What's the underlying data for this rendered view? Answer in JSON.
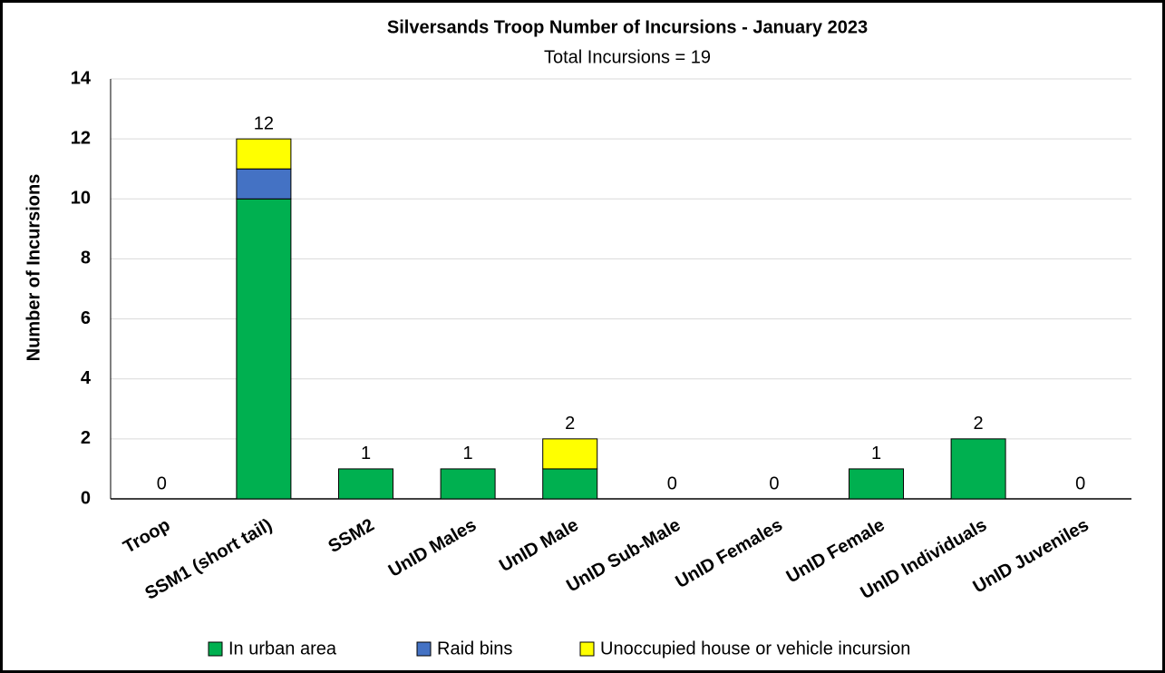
{
  "chart_data": {
    "type": "stacked_bar",
    "title": "Silversands Troop Number of Incursions - January 2023",
    "subtitle": "Total Incursions =  19",
    "y_label": "Number of Incursions",
    "categories": [
      "Troop",
      "SSM1 (short tail)",
      "SSM2",
      "UnID Males",
      "UnID Male",
      "UnID Sub-Male",
      "UnID Females",
      "UnID Female",
      "UnID Individuals",
      "UnID Juveniles"
    ],
    "series": [
      {
        "name": "In urban area",
        "color": "#00b050",
        "values": [
          0,
          10,
          1,
          1,
          1,
          0,
          0,
          1,
          2,
          0
        ]
      },
      {
        "name": "Raid bins",
        "color": "#4472c4",
        "values": [
          0,
          1,
          0,
          0,
          0,
          0,
          0,
          0,
          0,
          0
        ]
      },
      {
        "name": "Unoccupied house or vehicle incursion",
        "color": "#ffff00",
        "values": [
          0,
          1,
          0,
          0,
          1,
          0,
          0,
          0,
          0,
          0
        ]
      }
    ],
    "total_labels": [
      0,
      12,
      1,
      1,
      2,
      0,
      0,
      1,
      2,
      0
    ],
    "ylim": [
      0,
      14
    ],
    "yticks": [
      0,
      2,
      4,
      6,
      8,
      10,
      12,
      14
    ],
    "grid": true,
    "legend": "bottom"
  }
}
